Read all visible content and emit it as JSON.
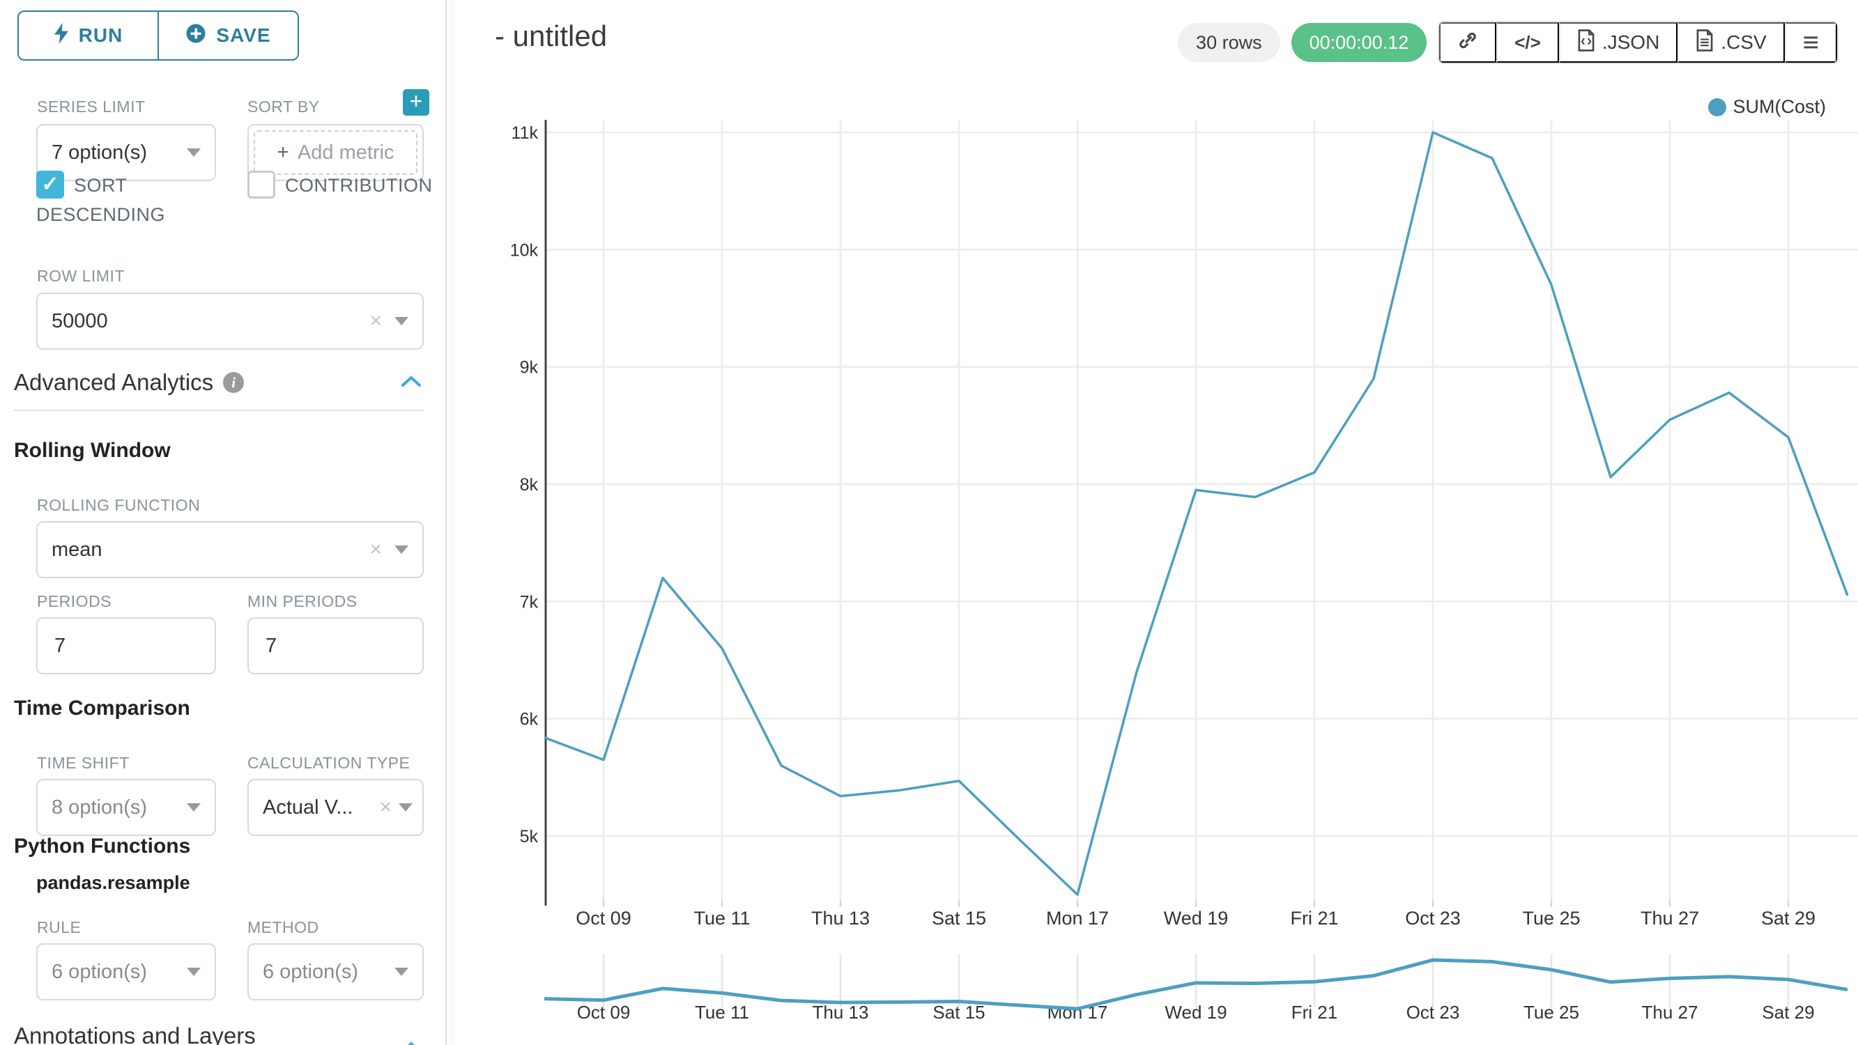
{
  "colors": {
    "accent_teal": "#2d7d9f",
    "control_teal": "#41b6d9",
    "plus_button_teal": "#2a9cb8",
    "chevron_blue": "#41a8dc",
    "line_color": "#4d9fc0",
    "success_green": "#5ac189",
    "gridline": "#ececec",
    "axis_dark": "#454545",
    "label_gray": "#879399"
  },
  "icons": {
    "run": "lightning-bolt",
    "save": "plus-circle",
    "plus_glyph": "+",
    "clear_glyph": "×",
    "check_glyph": "✓",
    "code_glyph": "</>",
    "menu_glyph": "≡",
    "info_glyph": "i"
  },
  "sidebar": {
    "run_label": "RUN",
    "save_label": "SAVE",
    "series_limit": {
      "label": "SERIES LIMIT",
      "value": "7 option(s)"
    },
    "sort_by": {
      "label": "SORT BY",
      "placeholder": "Add metric"
    },
    "sort_descending": {
      "label": "SORT DESCENDING",
      "checked": true
    },
    "contribution": {
      "label": "CONTRIBUTION",
      "checked": false
    },
    "row_limit": {
      "label": "ROW LIMIT",
      "value": "50000"
    },
    "advanced_analytics": {
      "title": "Advanced Analytics"
    },
    "rolling_window": {
      "title": "Rolling Window",
      "rolling_function": {
        "label": "ROLLING FUNCTION",
        "value": "mean"
      },
      "periods": {
        "label": "PERIODS",
        "value": "7"
      },
      "min_periods": {
        "label": "MIN PERIODS",
        "value": "7"
      }
    },
    "time_comparison": {
      "title": "Time Comparison",
      "time_shift": {
        "label": "TIME SHIFT",
        "value": "8 option(s)"
      },
      "calculation_type": {
        "label": "CALCULATION TYPE",
        "value": "Actual V..."
      }
    },
    "python_functions": {
      "title": "Python Functions",
      "subtitle": "pandas.resample",
      "rule": {
        "label": "RULE",
        "value": "6 option(s)"
      },
      "method": {
        "label": "METHOD",
        "value": "6 option(s)"
      }
    },
    "annotations": {
      "title": "Annotations and Layers"
    }
  },
  "header": {
    "title": "- untitled",
    "rows_badge": "30 rows",
    "timer_badge": "00:00:00.12",
    "export_json_label": ".JSON",
    "export_csv_label": ".CSV"
  },
  "chart_data": {
    "type": "line",
    "title": "",
    "legend_position": "top-right",
    "grid": true,
    "has_range_selector_minichart": true,
    "legend": [
      {
        "name": "SUM(Cost)",
        "color": "#4d9fc0"
      }
    ],
    "x": [
      "Oct 08",
      "Oct 09",
      "Oct 10",
      "Oct 11",
      "Oct 12",
      "Oct 13",
      "Oct 14",
      "Oct 15",
      "Oct 16",
      "Oct 17",
      "Oct 18",
      "Oct 19",
      "Oct 20",
      "Oct 21",
      "Oct 22",
      "Oct 23",
      "Oct 24",
      "Oct 25",
      "Oct 26",
      "Oct 27",
      "Oct 28",
      "Oct 29",
      "Oct 30"
    ],
    "series": [
      {
        "name": "SUM(Cost)",
        "values": [
          5840,
          5650,
          7200,
          6600,
          5600,
          5340,
          5390,
          5470,
          4980,
          4500,
          6400,
          7950,
          7890,
          8100,
          8900,
          11000,
          10780,
          9700,
          8060,
          8550,
          8780,
          8400,
          7050
        ]
      }
    ],
    "x_tick_labels": [
      "Oct 09",
      "Tue 11",
      "Thu 13",
      "Sat 15",
      "Mon 17",
      "Wed 19",
      "Fri 21",
      "Oct 23",
      "Tue 25",
      "Thu 27",
      "Sat 29"
    ],
    "y_ticks": [
      5000,
      6000,
      7000,
      8000,
      9000,
      10000,
      11000
    ],
    "y_tick_labels": [
      "5k",
      "6k",
      "7k",
      "8k",
      "9k",
      "10k",
      "11k"
    ],
    "ylim": [
      4400,
      11200
    ],
    "ylabel": "",
    "xlabel": ""
  }
}
